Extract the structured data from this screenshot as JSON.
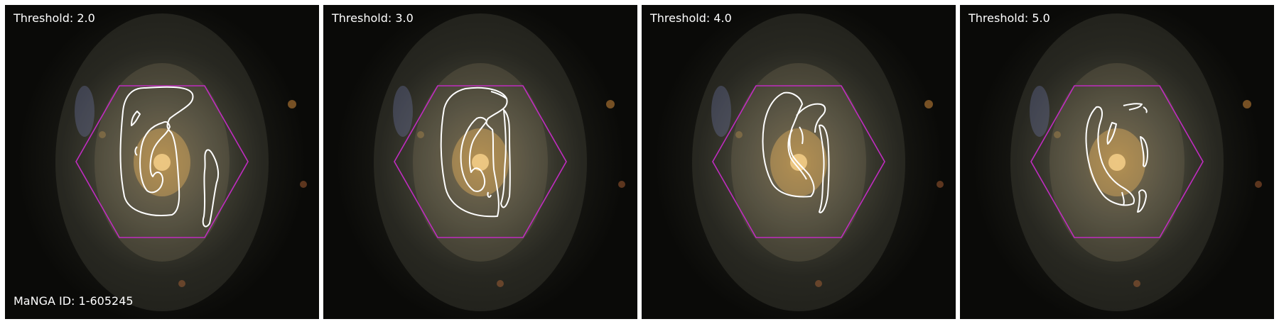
{
  "panels": [
    {
      "label": "Threshold: 2.0"
    },
    {
      "label": "Threshold: 3.0"
    },
    {
      "label": "Threshold: 4.0"
    },
    {
      "label": "Threshold: 5.0"
    }
  ],
  "galaxy_id_label": "MaNGA ID: 1-605245",
  "colors": {
    "contour": "#ffffff",
    "hexagon": "#c02cc0",
    "separator": "#ffffff"
  }
}
